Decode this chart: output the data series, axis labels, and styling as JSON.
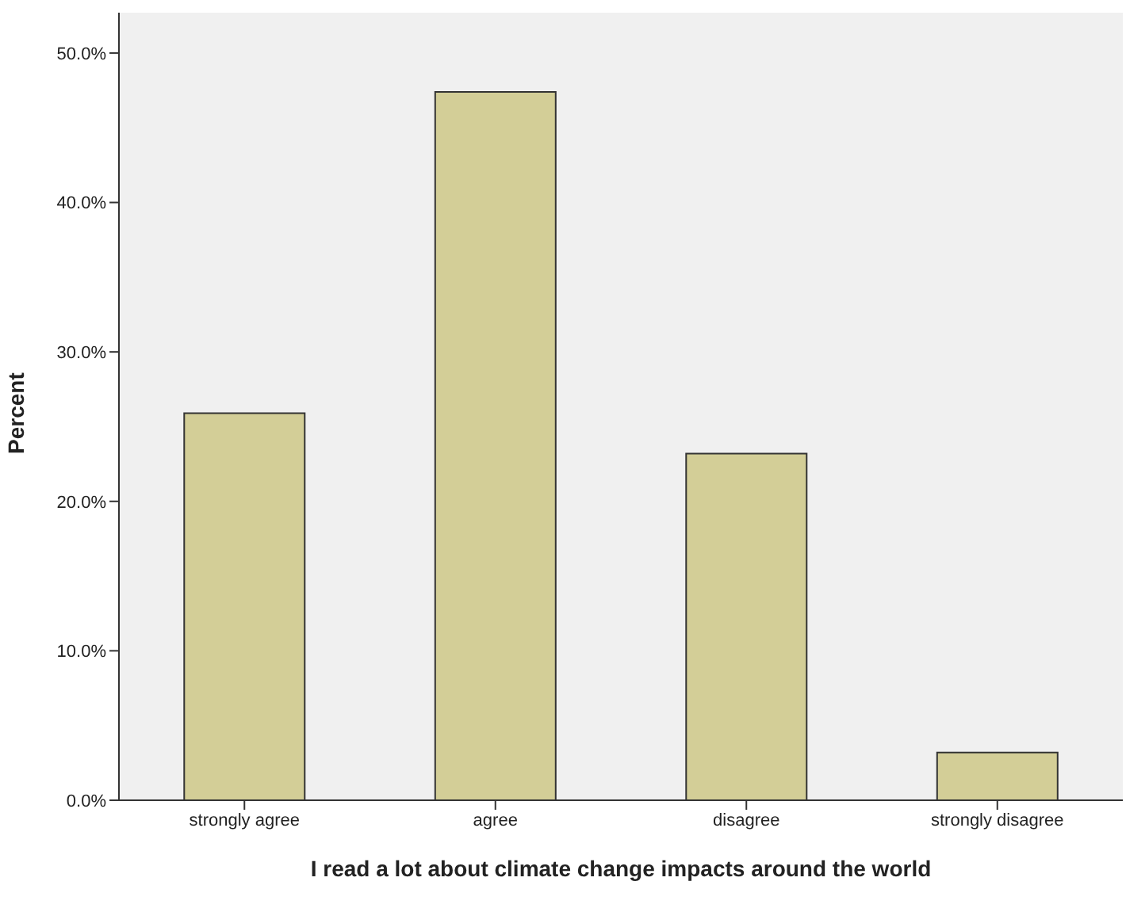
{
  "chart_data": {
    "type": "bar",
    "xlabel": "I read a lot about climate change impacts around the world",
    "ylabel": "Percent",
    "categories": [
      "strongly agree",
      "agree",
      "disagree",
      "strongly disagree"
    ],
    "values": [
      25.9,
      47.4,
      23.2,
      3.2
    ],
    "color": "#d3ce97",
    "ylim": [
      0,
      52.7
    ],
    "yticks": [
      {
        "value": 0,
        "label": "0.0%"
      },
      {
        "value": 10,
        "label": "10.0%"
      },
      {
        "value": 20,
        "label": "20.0%"
      },
      {
        "value": 30,
        "label": "30.0%"
      },
      {
        "value": 40,
        "label": "40.0%"
      },
      {
        "value": 50,
        "label": "50.0%"
      }
    ]
  }
}
